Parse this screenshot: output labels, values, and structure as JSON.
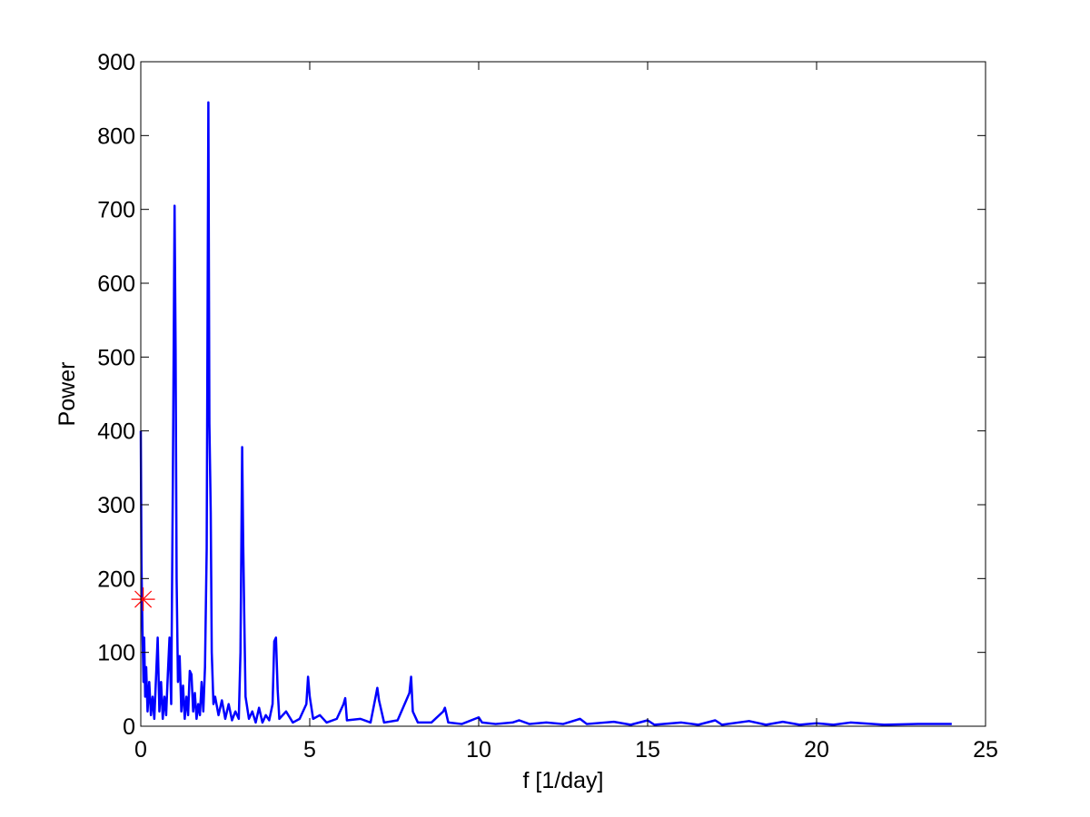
{
  "chart_data": {
    "type": "line",
    "xlabel": "f [1/day]",
    "ylabel": "Power",
    "x": [
      0,
      0.02,
      0.05,
      0.08,
      0.1,
      0.13,
      0.16,
      0.2,
      0.25,
      0.3,
      0.35,
      0.4,
      0.45,
      0.5,
      0.55,
      0.6,
      0.65,
      0.7,
      0.75,
      0.8,
      0.85,
      0.9,
      0.95,
      1.0,
      1.03,
      1.06,
      1.1,
      1.15,
      1.2,
      1.25,
      1.3,
      1.35,
      1.4,
      1.45,
      1.5,
      1.55,
      1.6,
      1.65,
      1.7,
      1.75,
      1.8,
      1.85,
      1.9,
      1.95,
      2.0,
      2.03,
      2.07,
      2.1,
      2.15,
      2.2,
      2.3,
      2.4,
      2.5,
      2.6,
      2.7,
      2.8,
      2.9,
      2.95,
      3.0,
      3.03,
      3.06,
      3.1,
      3.2,
      3.3,
      3.4,
      3.5,
      3.6,
      3.7,
      3.8,
      3.9,
      3.95,
      4.0,
      4.05,
      4.1,
      4.3,
      4.5,
      4.7,
      4.9,
      4.95,
      5.0,
      5.1,
      5.3,
      5.5,
      5.8,
      6.0,
      6.05,
      6.1,
      6.5,
      6.8,
      6.95,
      7.0,
      7.05,
      7.2,
      7.6,
      7.95,
      8.0,
      8.05,
      8.2,
      8.6,
      8.95,
      9.0,
      9.1,
      9.5,
      10.0,
      10.1,
      10.5,
      11.0,
      11.2,
      11.5,
      12.0,
      12.5,
      13.0,
      13.2,
      14.0,
      14.5,
      15.0,
      15.2,
      16.0,
      16.5,
      17.0,
      17.2,
      18.0,
      18.5,
      19.0,
      19.5,
      20.0,
      20.5,
      21.0,
      22.0,
      23.0,
      24.0
    ],
    "series": [
      {
        "color": "#0000ff",
        "values": [
          400,
          220,
          130,
          60,
          120,
          40,
          80,
          20,
          60,
          15,
          40,
          10,
          65,
          120,
          20,
          60,
          10,
          40,
          15,
          70,
          120,
          30,
          340,
          705,
          510,
          200,
          60,
          95,
          20,
          55,
          10,
          40,
          15,
          75,
          70,
          20,
          45,
          10,
          30,
          15,
          60,
          20,
          80,
          240,
          845,
          410,
          290,
          100,
          30,
          40,
          15,
          35,
          10,
          30,
          8,
          20,
          10,
          100,
          378,
          250,
          155,
          40,
          10,
          20,
          5,
          25,
          5,
          15,
          8,
          30,
          115,
          120,
          50,
          10,
          20,
          5,
          10,
          30,
          67,
          40,
          10,
          15,
          5,
          10,
          30,
          38,
          8,
          10,
          5,
          40,
          52,
          35,
          5,
          8,
          45,
          67,
          20,
          5,
          5,
          20,
          25,
          5,
          3,
          12,
          5,
          3,
          5,
          8,
          3,
          5,
          3,
          10,
          3,
          6,
          2,
          8,
          2,
          5,
          2,
          8,
          2,
          7,
          2,
          6,
          2,
          4,
          2,
          5,
          2,
          3,
          3
        ]
      }
    ],
    "marker": {
      "x": 0.07,
      "y": 172,
      "color": "#ff0000"
    },
    "xlim": [
      0,
      25
    ],
    "xticks": [
      0,
      5,
      10,
      15,
      20,
      25
    ],
    "ylim": [
      0,
      900
    ],
    "yticks": [
      0,
      100,
      200,
      300,
      400,
      500,
      600,
      700,
      800,
      900
    ]
  }
}
